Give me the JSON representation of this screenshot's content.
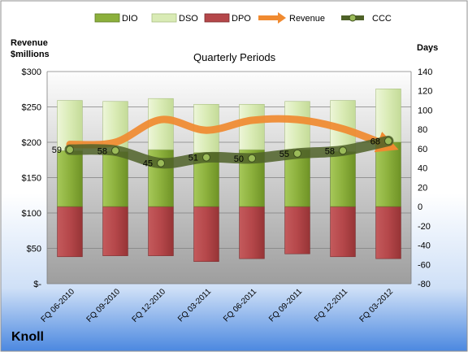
{
  "company": "Knoll",
  "chart_data": {
    "type": "bar",
    "title": "Quarterly Periods",
    "left_axis_title": [
      "Revenue",
      "$millions"
    ],
    "right_axis_title": "Days",
    "categories": [
      "FQ 06-2010",
      "FQ 09-2010",
      "FQ 12-2010",
      "FQ 03-2011",
      "FQ 06-2011",
      "FQ 09-2011",
      "FQ 12-2011",
      "FQ 03-2012"
    ],
    "legend_position": "top",
    "y_left": {
      "min": 0,
      "max": 300,
      "step": 50,
      "tick_labels": [
        "$-",
        "$50",
        "$100",
        "$150",
        "$200",
        "$250",
        "$300"
      ]
    },
    "y_right": {
      "min": -80,
      "max": 140,
      "step": 20,
      "tick_labels": [
        "-80",
        "-60",
        "-40",
        "-20",
        "0",
        "20",
        "40",
        "60",
        "80",
        "100",
        "120",
        "140"
      ]
    },
    "series": [
      {
        "name": "DIO",
        "kind": "stacked-bar",
        "axis": "right",
        "color": "#8CB03C",
        "values": [
          58,
          57,
          59,
          56,
          59,
          59,
          57,
          67
        ]
      },
      {
        "name": "DSO",
        "kind": "stacked-bar",
        "axis": "right",
        "color": "#D9EBB5",
        "values": [
          52,
          52,
          53,
          50,
          47,
          50,
          53,
          55
        ]
      },
      {
        "name": "DPO",
        "kind": "negative-bar",
        "axis": "right",
        "color": "#B5474A",
        "values": [
          -52,
          -51,
          -51,
          -57,
          -54,
          -49,
          -52,
          -54
        ]
      },
      {
        "name": "Revenue",
        "kind": "line",
        "axis": "left",
        "color": "#F08A30",
        "values": [
          197,
          200,
          232,
          217,
          231,
          232,
          219,
          195
        ]
      },
      {
        "name": "CCC",
        "kind": "line",
        "axis": "right",
        "color": "#4F6228",
        "values": [
          59,
          58,
          45,
          51,
          50,
          55,
          58,
          68
        ],
        "labels": [
          "59",
          "58",
          "45",
          "51",
          "50",
          "55",
          "58",
          "68"
        ]
      }
    ]
  }
}
